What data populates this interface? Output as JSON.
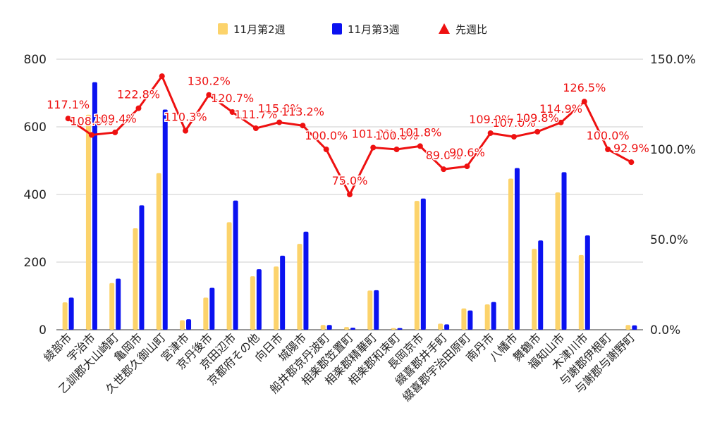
{
  "chart_data": {
    "type": "bar",
    "categories": [
      "綾部市",
      "宇治市",
      "乙訓郡大山崎町",
      "亀岡市",
      "久世郡久御山町",
      "宮津市",
      "京丹後市",
      "京田辺市",
      "京都府その他",
      "向日市",
      "城陽市",
      "船井郡京丹波町",
      "相楽郡笠置町",
      "相楽郡精華町",
      "相楽郡和束町",
      "長岡京市",
      "綴喜郡井手町",
      "綴喜郡宇治田原町",
      "南丹市",
      "八幡市",
      "舞鶴市",
      "福知山市",
      "木津川市",
      "与謝郡伊根町",
      "与謝郡与謝野町"
    ],
    "series": [
      {
        "name": "11月第2週",
        "axis": "left",
        "color": "#fcd36b",
        "values": [
          81,
          636,
          138,
          300,
          463,
          28,
          95,
          318,
          158,
          187,
          254,
          14,
          8,
          116,
          5,
          381,
          18,
          63,
          75,
          447,
          239,
          406,
          221,
          0,
          14
        ]
      },
      {
        "name": "11月第3週",
        "axis": "left",
        "color": "#0b12f0",
        "values": [
          95,
          732,
          151,
          368,
          651,
          31,
          124,
          382,
          179,
          219,
          290,
          14,
          6,
          117,
          5,
          388,
          16,
          57,
          82,
          478,
          264,
          466,
          279,
          0,
          13
        ]
      },
      {
        "name": "先週比",
        "axis": "right",
        "type": "line",
        "color": "#ee1111",
        "values": [
          117.1,
          108.0,
          109.4,
          122.8,
          140.6,
          110.3,
          130.2,
          120.7,
          111.7,
          115.0,
          113.2,
          100.0,
          75.0,
          101.0,
          100.0,
          101.8,
          89.0,
          90.6,
          109.0,
          107.0,
          109.8,
          114.9,
          126.5,
          100.0,
          92.9
        ],
        "labels": [
          "117.1%",
          "108.0%",
          "109.4%",
          "122.8%",
          "",
          "110.3%",
          "130.2%",
          "120.7%",
          "111.7%",
          "115.0%",
          "113.2%",
          "100.0%",
          "75.0%",
          "101.0%",
          "100.0%",
          "101.8%",
          "89.0%",
          "90.6%",
          "109.0%",
          "107.0%",
          "109.8%",
          "114.9%",
          "126.5%",
          "100.0%",
          "92.9%"
        ]
      }
    ],
    "ylim": [
      0,
      800
    ],
    "yticks": [
      "0",
      "200",
      "400",
      "600",
      "800"
    ],
    "y2lim": [
      0,
      150
    ],
    "y2ticks": [
      "0.0%",
      "50.0%",
      "100.0%",
      "150.0%"
    ],
    "grid": true,
    "legend": "top-center",
    "title": "",
    "xlabel": "",
    "ylabel": ""
  }
}
